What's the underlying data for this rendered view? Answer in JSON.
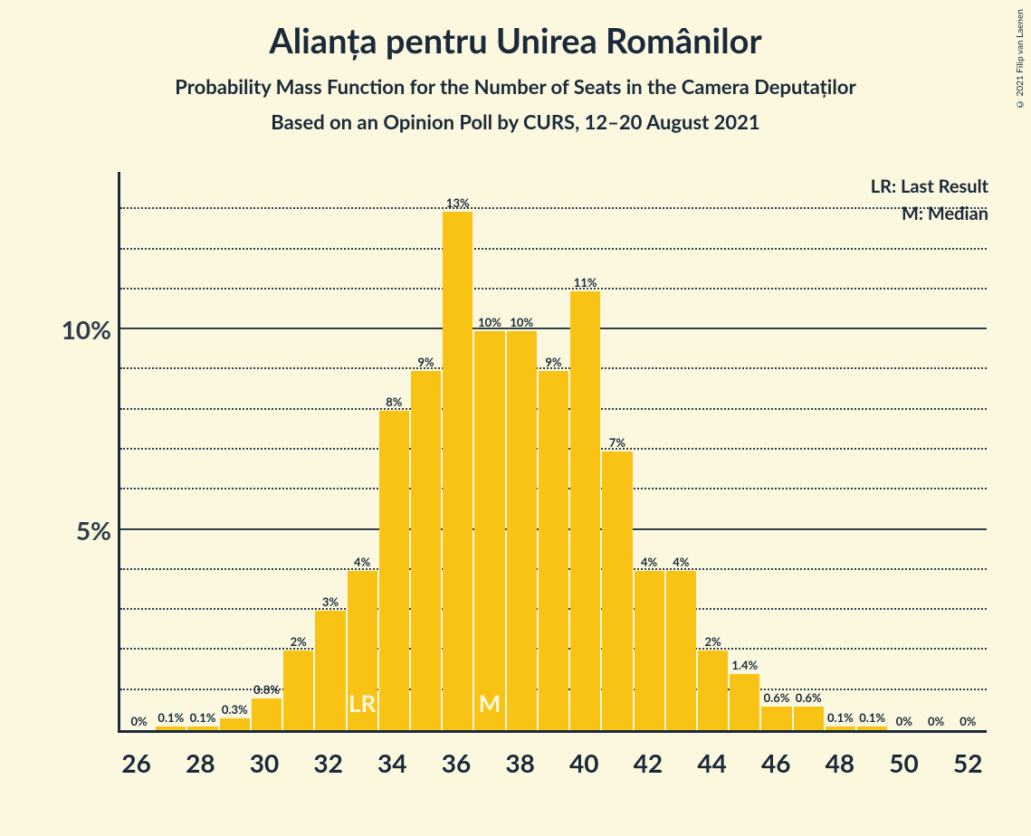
{
  "copyright": "© 2021 Filip van Laenen",
  "title": "Alianța pentru Unirea Românilor",
  "subtitle": "Probability Mass Function for the Number of Seats in the Camera Deputaților",
  "subtitle2": "Based on an Opinion Poll by CURS, 12–20 August 2021",
  "legend": {
    "lr": "LR: Last Result",
    "m": "M: Median"
  },
  "chart": {
    "type": "bar",
    "bar_color": "#f8c314",
    "background_color": "#fbf8df",
    "text_color": "#1a2a3a",
    "inner_label_color": "#fbf8df",
    "ylim": [
      0,
      14
    ],
    "y_major_ticks": [
      5,
      10
    ],
    "y_minor_step": 1,
    "y_minor_ticks": [
      1,
      2,
      3,
      4,
      6,
      7,
      8,
      9,
      11,
      12,
      13
    ],
    "y_tick_labels": {
      "5": "5%",
      "10": "10%"
    },
    "x_range": [
      26,
      52
    ],
    "median_x": 37,
    "lr_x": 33,
    "title_fontsize": 38,
    "subtitle_fontsize": 22,
    "axis_label_fontsize": 28,
    "bar_label_fontsize": 13,
    "inner_label_fontsize": 26,
    "bars": [
      {
        "x": 26,
        "v": 0,
        "label": "0%"
      },
      {
        "x": 27,
        "v": 0.1,
        "label": "0.1%"
      },
      {
        "x": 28,
        "v": 0.1,
        "label": "0.1%"
      },
      {
        "x": 29,
        "v": 0.3,
        "label": "0.3%"
      },
      {
        "x": 30,
        "v": 0.8,
        "label": "0.8%"
      },
      {
        "x": 31,
        "v": 2,
        "label": "2%"
      },
      {
        "x": 32,
        "v": 3,
        "label": "3%"
      },
      {
        "x": 33,
        "v": 4,
        "label": "4%",
        "inner": "LR"
      },
      {
        "x": 34,
        "v": 8,
        "label": "8%"
      },
      {
        "x": 35,
        "v": 9,
        "label": "9%"
      },
      {
        "x": 36,
        "v": 13,
        "label": "13%"
      },
      {
        "x": 37,
        "v": 10,
        "label": "10%",
        "inner": "M"
      },
      {
        "x": 38,
        "v": 10,
        "label": "10%"
      },
      {
        "x": 39,
        "v": 9,
        "label": "9%"
      },
      {
        "x": 40,
        "v": 11,
        "label": "11%"
      },
      {
        "x": 41,
        "v": 7,
        "label": "7%"
      },
      {
        "x": 42,
        "v": 4,
        "label": "4%"
      },
      {
        "x": 43,
        "v": 4,
        "label": "4%"
      },
      {
        "x": 44,
        "v": 2,
        "label": "2%"
      },
      {
        "x": 45,
        "v": 1.4,
        "label": "1.4%"
      },
      {
        "x": 46,
        "v": 0.6,
        "label": "0.6%"
      },
      {
        "x": 47,
        "v": 0.6,
        "label": "0.6%"
      },
      {
        "x": 48,
        "v": 0.1,
        "label": "0.1%"
      },
      {
        "x": 49,
        "v": 0.1,
        "label": "0.1%"
      },
      {
        "x": 50,
        "v": 0,
        "label": "0%"
      },
      {
        "x": 51,
        "v": 0,
        "label": "0%"
      },
      {
        "x": 52,
        "v": 0,
        "label": "0%"
      }
    ]
  }
}
